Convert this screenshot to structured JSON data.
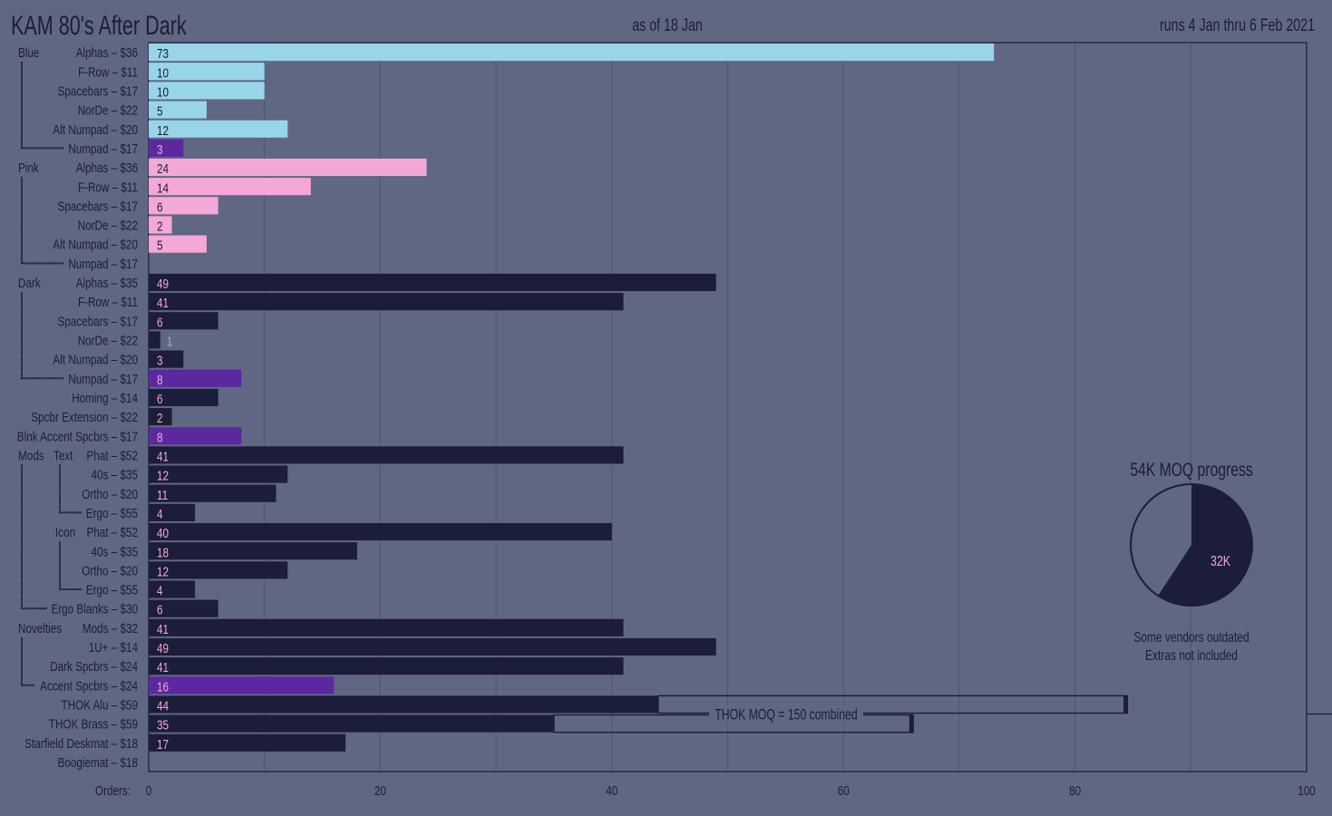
{
  "header": {
    "title": "KAM 80's After Dark",
    "as_of": "as of 18 Jan",
    "runs": "runs  4 Jan  thru  6 Feb  2021"
  },
  "colors": {
    "background": "#5f6783",
    "dark": "#1c1d38",
    "blue": "#98d5e8",
    "pink": "#f4a8d6",
    "purple": "#5b28a0",
    "label_on_dark": "#f4a8d6"
  },
  "chart_data": {
    "type": "bar",
    "orientation": "horizontal",
    "xlabel": "Orders:",
    "xlim": [
      0,
      100
    ],
    "xticks": [
      "0",
      "20",
      "40",
      "60",
      "80",
      "100"
    ],
    "grid": true,
    "groups": [
      {
        "name": "Blue"
      },
      {
        "name": "Pink"
      },
      {
        "name": "Dark"
      },
      {
        "name": "Mods"
      },
      {
        "name": "Text"
      },
      {
        "name": "Icon"
      },
      {
        "name": "Novelties"
      }
    ],
    "rows": [
      {
        "group": "Blue",
        "label": "Alphas – $36",
        "value": 73,
        "color": "blue"
      },
      {
        "group": "",
        "label": "F-Row – $11",
        "value": 10,
        "color": "blue"
      },
      {
        "group": "",
        "label": "Spacebars – $17",
        "value": 10,
        "color": "blue"
      },
      {
        "group": "",
        "label": "NorDe – $22",
        "value": 5,
        "color": "blue"
      },
      {
        "group": "",
        "label": "Alt Numpad – $20",
        "value": 12,
        "color": "blue"
      },
      {
        "group": "",
        "label": "Numpad – $17",
        "value": 3,
        "color": "purple"
      },
      {
        "group": "Pink",
        "label": "Alphas – $36",
        "value": 24,
        "color": "pink"
      },
      {
        "group": "",
        "label": "F-Row – $11",
        "value": 14,
        "color": "pink"
      },
      {
        "group": "",
        "label": "Spacebars – $17",
        "value": 6,
        "color": "pink"
      },
      {
        "group": "",
        "label": "NorDe – $22",
        "value": 2,
        "color": "pink"
      },
      {
        "group": "",
        "label": "Alt Numpad – $20",
        "value": 5,
        "color": "pink"
      },
      {
        "group": "",
        "label": "Numpad – $17",
        "value": null,
        "color": "pink"
      },
      {
        "group": "Dark",
        "label": "Alphas – $35",
        "value": 49,
        "color": "dark"
      },
      {
        "group": "",
        "label": "F-Row – $11",
        "value": 41,
        "color": "dark"
      },
      {
        "group": "",
        "label": "Spacebars – $17",
        "value": 6,
        "color": "dark"
      },
      {
        "group": "",
        "label": "NorDe – $22",
        "value": 1,
        "color": "dark"
      },
      {
        "group": "",
        "label": "Alt Numpad – $20",
        "value": 3,
        "color": "dark"
      },
      {
        "group": "",
        "label": "Numpad – $17",
        "value": 8,
        "color": "purple"
      },
      {
        "group": "",
        "label": "Homing – $14",
        "value": 6,
        "color": "dark"
      },
      {
        "group": "",
        "label": "Spcbr Extension – $22",
        "value": 2,
        "color": "dark"
      },
      {
        "group": "",
        "label": "Blnk Accent Spcbrs – $17",
        "value": 8,
        "color": "purple"
      },
      {
        "group": "Mods",
        "subgroup": "Text",
        "label": "Phat – $52",
        "value": 41,
        "color": "dark"
      },
      {
        "group": "",
        "label": "40s – $35",
        "value": 12,
        "color": "dark"
      },
      {
        "group": "",
        "label": "Ortho – $20",
        "value": 11,
        "color": "dark"
      },
      {
        "group": "",
        "label": "Ergo – $55",
        "value": 4,
        "color": "dark"
      },
      {
        "group": "",
        "subgroup": "Icon",
        "label": "Phat – $52",
        "value": 40,
        "color": "dark"
      },
      {
        "group": "",
        "label": "40s – $35",
        "value": 18,
        "color": "dark"
      },
      {
        "group": "",
        "label": "Ortho – $20",
        "value": 12,
        "color": "dark"
      },
      {
        "group": "",
        "label": "Ergo – $55",
        "value": 4,
        "color": "dark"
      },
      {
        "group": "",
        "label": "Ergo Blanks – $30",
        "value": 6,
        "color": "dark"
      },
      {
        "group": "Novelties",
        "label": "Mods – $32",
        "value": 41,
        "color": "dark"
      },
      {
        "group": "",
        "label": "1U+ – $14",
        "value": 49,
        "color": "dark"
      },
      {
        "group": "",
        "label": "Dark Spcbrs – $24",
        "value": 41,
        "color": "dark"
      },
      {
        "group": "",
        "label": "Accent Spcbrs – $24",
        "value": 16,
        "color": "purple"
      },
      {
        "group": "",
        "label": "THOK Alu – $59",
        "value": 44,
        "color": "dark",
        "moq_outline_to": 84.5
      },
      {
        "group": "",
        "label": "THOK Brass – $59",
        "value": 35,
        "color": "dark",
        "moq_outline_to": 66
      },
      {
        "group": "",
        "label": "Starfield Deskmat – $18",
        "value": 17,
        "color": "dark"
      },
      {
        "group": "",
        "label": "Boogiemat – $18",
        "value": null,
        "color": "dark"
      }
    ],
    "annotation": "THOK MOQ = 150 combined",
    "pie": {
      "type": "pie",
      "title": "54K MOQ progress",
      "total": 54,
      "filled": 32,
      "filled_label": "32K",
      "notes": [
        "Some vendors outdated",
        "Extras not included"
      ]
    }
  }
}
